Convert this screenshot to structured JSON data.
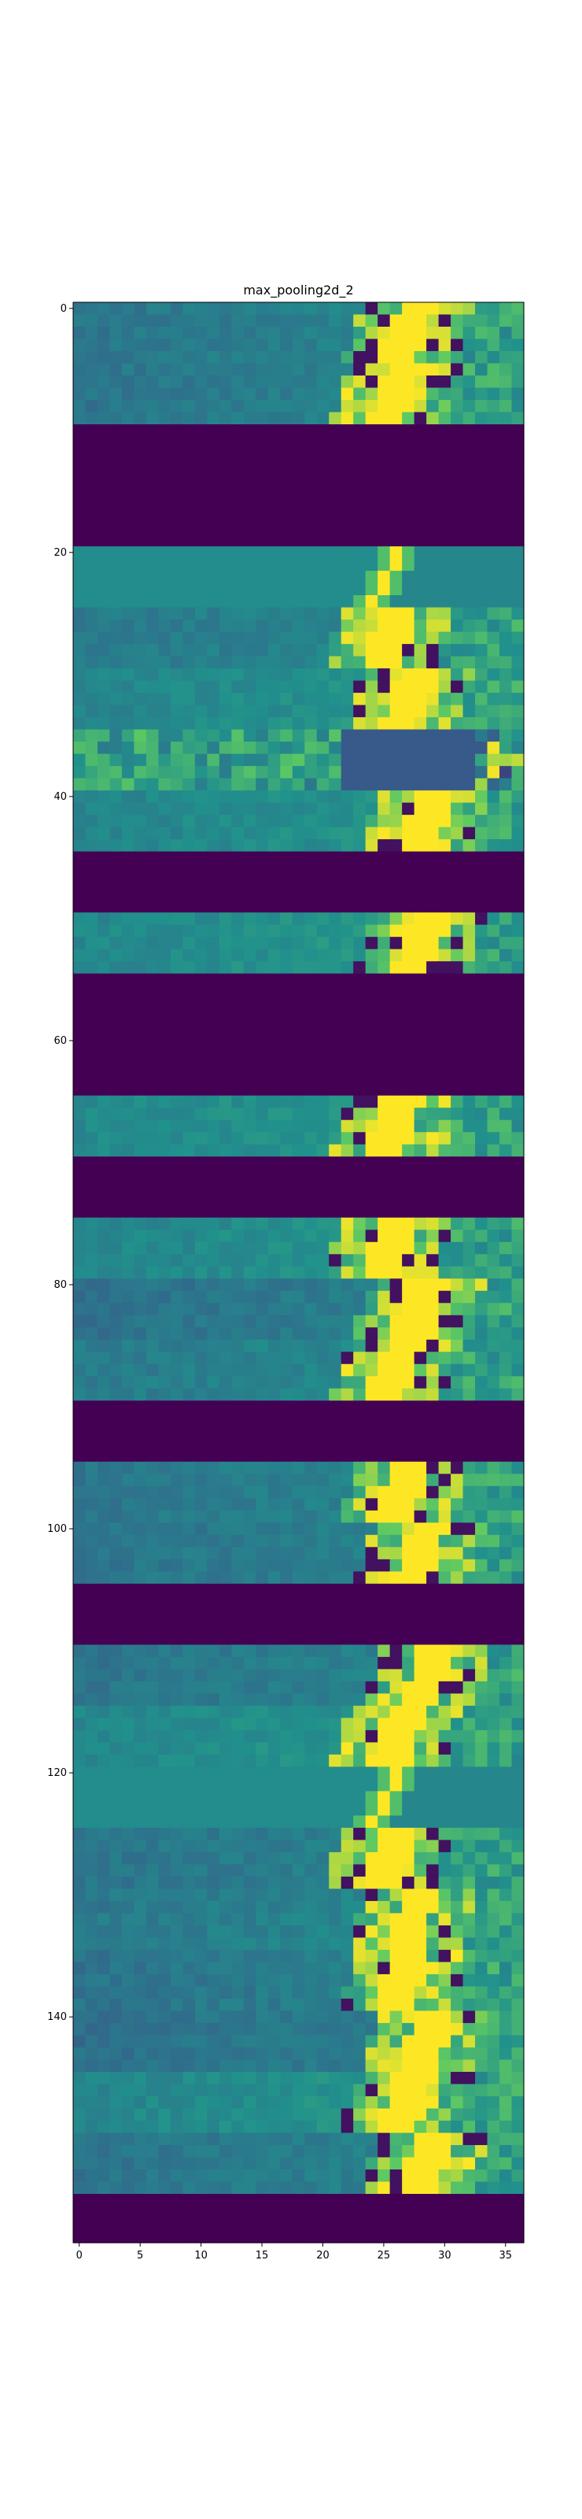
{
  "chart_data": {
    "type": "heatmap",
    "title": "max_pooling2d_2",
    "xlabel": "",
    "ylabel": "",
    "colormap": "viridis",
    "colors": {
      "dark": "#440154",
      "blue": "#3b528b",
      "teal": "#21918c",
      "green": "#5ec962",
      "yellow": "#fde725"
    },
    "n_cols": 37,
    "n_rows": 159,
    "xlim": [
      -0.5,
      36.5
    ],
    "ylim": [
      158.5,
      -0.5
    ],
    "x_ticks": [
      0,
      5,
      10,
      15,
      20,
      25,
      30,
      35
    ],
    "y_ticks": [
      0,
      20,
      40,
      60,
      80,
      100,
      120,
      140
    ],
    "x_tick_labels": [
      "0",
      "5",
      "10",
      "15",
      "20",
      "25",
      "30",
      "35"
    ],
    "y_tick_labels": [
      "0",
      "20",
      "40",
      "60",
      "80",
      "100",
      "120",
      "140"
    ],
    "value_range": [
      0,
      1
    ],
    "row_bands": [
      {
        "start": 0,
        "end": 9,
        "kind": "active"
      },
      {
        "start": 10,
        "end": 19,
        "kind": "empty"
      },
      {
        "start": 20,
        "end": 24,
        "kind": "flat"
      },
      {
        "start": 25,
        "end": 34,
        "kind": "active"
      },
      {
        "start": 35,
        "end": 39,
        "kind": "noisy"
      },
      {
        "start": 40,
        "end": 44,
        "kind": "active"
      },
      {
        "start": 45,
        "end": 49,
        "kind": "empty"
      },
      {
        "start": 50,
        "end": 54,
        "kind": "active"
      },
      {
        "start": 55,
        "end": 64,
        "kind": "empty"
      },
      {
        "start": 65,
        "end": 69,
        "kind": "active"
      },
      {
        "start": 70,
        "end": 74,
        "kind": "empty"
      },
      {
        "start": 75,
        "end": 89,
        "kind": "active"
      },
      {
        "start": 90,
        "end": 94,
        "kind": "empty"
      },
      {
        "start": 95,
        "end": 104,
        "kind": "active"
      },
      {
        "start": 105,
        "end": 109,
        "kind": "empty"
      },
      {
        "start": 110,
        "end": 119,
        "kind": "active"
      },
      {
        "start": 120,
        "end": 124,
        "kind": "flat"
      },
      {
        "start": 125,
        "end": 154,
        "kind": "active"
      },
      {
        "start": 155,
        "end": 158,
        "kind": "empty"
      }
    ]
  }
}
